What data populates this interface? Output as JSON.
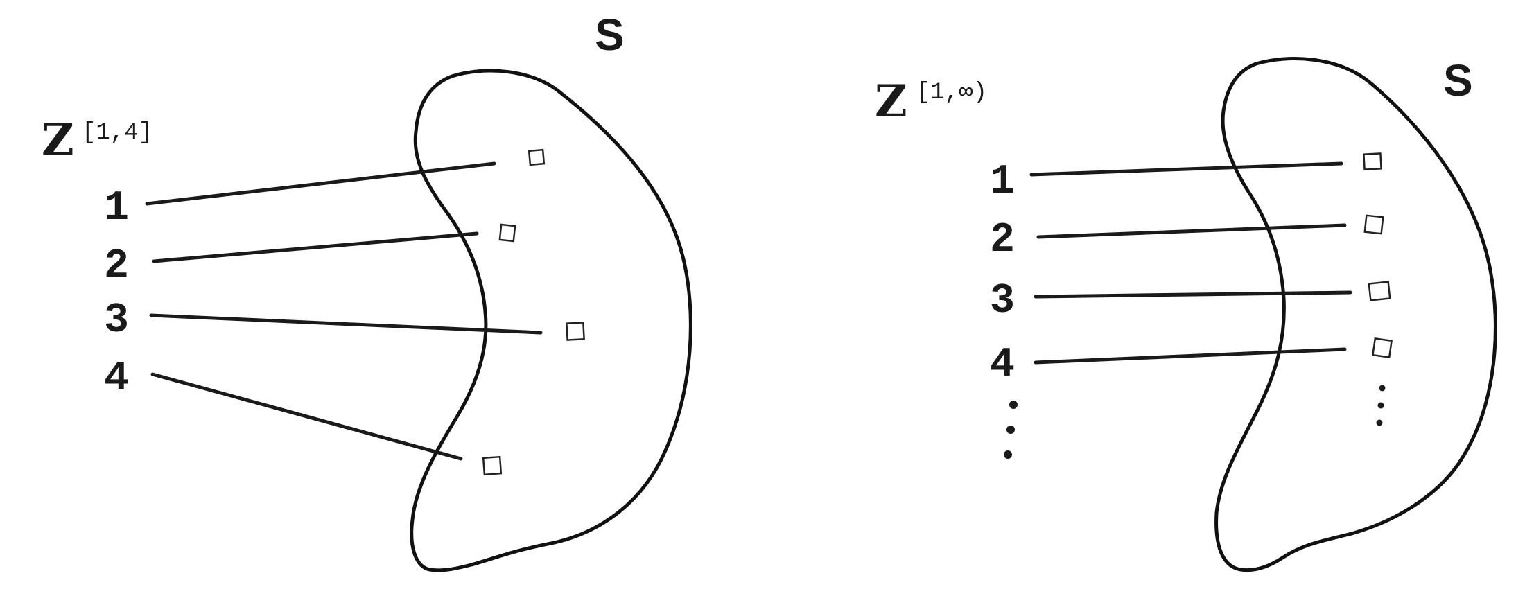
{
  "left_panel": {
    "set_label": "S",
    "domain_symbol": "Z",
    "domain_superscript": "[1,4]",
    "indices": [
      "1",
      "2",
      "3",
      "4"
    ]
  },
  "right_panel": {
    "set_label": "S",
    "domain_symbol": "Z",
    "domain_superscript": "[1,∞)",
    "indices": [
      "1",
      "2",
      "3",
      "4"
    ],
    "continuation": "⋮"
  }
}
